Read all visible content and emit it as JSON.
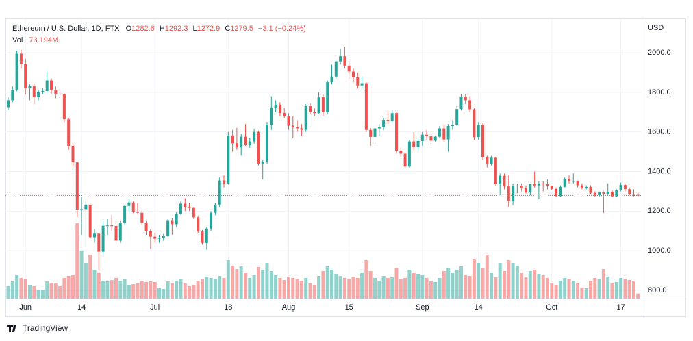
{
  "header": {
    "symbol": "Ethereum / U.S. Dollar, 1D, FTX",
    "open_label": "O",
    "high_label": "H",
    "low_label": "L",
    "close_label": "C",
    "change": "−3.1 (−0.24%)",
    "vol_label": "Vol",
    "vol_value": "73.194M",
    "brand": "TradingView"
  },
  "chart_data": {
    "type": "candlestick",
    "currency": "USD",
    "up_color": "#26a69a",
    "down_color": "#ef5350",
    "grid": true,
    "ylim": [
      758.5,
      2173
    ],
    "yticks": [
      {
        "value": 800,
        "label": "800.0"
      },
      {
        "value": 1000,
        "label": "1000.0"
      },
      {
        "value": 1200,
        "label": "1200.0"
      },
      {
        "value": 1400,
        "label": "1400.0"
      },
      {
        "value": 1600,
        "label": "1600.0"
      },
      {
        "value": 1800,
        "label": "1800.0"
      },
      {
        "value": 2000,
        "label": "2000.0"
      }
    ],
    "xticks": [
      {
        "value": 4,
        "label": "Jun"
      },
      {
        "value": 17,
        "label": "14"
      },
      {
        "value": 34,
        "label": "Jul"
      },
      {
        "value": 51,
        "label": "18"
      },
      {
        "value": 65,
        "label": "Aug"
      },
      {
        "value": 79,
        "label": "15"
      },
      {
        "value": 96,
        "label": "Sep"
      },
      {
        "value": 109,
        "label": "14"
      },
      {
        "value": 126,
        "label": "Oct"
      },
      {
        "value": 142,
        "label": "17"
      }
    ],
    "candles": [
      [
        1725,
        1775,
        1710,
        1760
      ],
      [
        1760,
        1830,
        1750,
        1812
      ],
      [
        1812,
        2010,
        1805,
        1995
      ],
      [
        1995,
        2015,
        1920,
        1942
      ],
      [
        1942,
        1970,
        1790,
        1822
      ],
      [
        1822,
        1840,
        1760,
        1832
      ],
      [
        1832,
        1845,
        1740,
        1776
      ],
      [
        1776,
        1810,
        1760,
        1802
      ],
      [
        1802,
        1820,
        1790,
        1806
      ],
      [
        1806,
        1905,
        1800,
        1860
      ],
      [
        1860,
        1870,
        1790,
        1812
      ],
      [
        1812,
        1830,
        1770,
        1793
      ],
      [
        1793,
        1810,
        1775,
        1790
      ],
      [
        1790,
        1795,
        1650,
        1664
      ],
      [
        1664,
        1670,
        1510,
        1530
      ],
      [
        1530,
        1540,
        1420,
        1446
      ],
      [
        1446,
        1450,
        1170,
        1208
      ],
      [
        1208,
        1270,
        1080,
        1210
      ],
      [
        1210,
        1250,
        1020,
        1233
      ],
      [
        1233,
        1240,
        1060,
        1068
      ],
      [
        1068,
        1110,
        1040,
        1086
      ],
      [
        1086,
        1090,
        900,
        995
      ],
      [
        995,
        1150,
        980,
        1126
      ],
      [
        1126,
        1160,
        1080,
        1128
      ],
      [
        1128,
        1180,
        1100,
        1125
      ],
      [
        1125,
        1140,
        1040,
        1051
      ],
      [
        1051,
        1150,
        1040,
        1142
      ],
      [
        1142,
        1230,
        1130,
        1226
      ],
      [
        1226,
        1260,
        1200,
        1244
      ],
      [
        1244,
        1250,
        1190,
        1198
      ],
      [
        1198,
        1240,
        1185,
        1192
      ],
      [
        1192,
        1210,
        1130,
        1141
      ],
      [
        1141,
        1150,
        1080,
        1098
      ],
      [
        1098,
        1110,
        1010,
        1071
      ],
      [
        1071,
        1090,
        1040,
        1061
      ],
      [
        1061,
        1080,
        1040,
        1066
      ],
      [
        1066,
        1085,
        1050,
        1074
      ],
      [
        1074,
        1160,
        1070,
        1151
      ],
      [
        1151,
        1165,
        1080,
        1134
      ],
      [
        1134,
        1195,
        1120,
        1187
      ],
      [
        1187,
        1250,
        1180,
        1238
      ],
      [
        1238,
        1265,
        1200,
        1221
      ],
      [
        1221,
        1240,
        1200,
        1216
      ],
      [
        1216,
        1220,
        1160,
        1169
      ],
      [
        1169,
        1175,
        1090,
        1097
      ],
      [
        1097,
        1105,
        1030,
        1039
      ],
      [
        1039,
        1120,
        1005,
        1112
      ],
      [
        1112,
        1200,
        1100,
        1192
      ],
      [
        1192,
        1240,
        1180,
        1233
      ],
      [
        1233,
        1370,
        1220,
        1355
      ],
      [
        1355,
        1380,
        1320,
        1339
      ],
      [
        1339,
        1600,
        1335,
        1582
      ],
      [
        1582,
        1610,
        1500,
        1543
      ],
      [
        1543,
        1620,
        1510,
        1522
      ],
      [
        1522,
        1590,
        1480,
        1576
      ],
      [
        1576,
        1640,
        1530,
        1533
      ],
      [
        1533,
        1570,
        1520,
        1552
      ],
      [
        1552,
        1615,
        1540,
        1600
      ],
      [
        1600,
        1605,
        1430,
        1440
      ],
      [
        1440,
        1460,
        1360,
        1450
      ],
      [
        1450,
        1650,
        1440,
        1637
      ],
      [
        1637,
        1780,
        1610,
        1724
      ],
      [
        1724,
        1760,
        1700,
        1738
      ],
      [
        1738,
        1750,
        1680,
        1696
      ],
      [
        1696,
        1720,
        1670,
        1680
      ],
      [
        1680,
        1695,
        1610,
        1632
      ],
      [
        1632,
        1680,
        1570,
        1624
      ],
      [
        1624,
        1660,
        1600,
        1618
      ],
      [
        1618,
        1640,
        1580,
        1611
      ],
      [
        1611,
        1740,
        1600,
        1730
      ],
      [
        1730,
        1745,
        1690,
        1700
      ],
      [
        1700,
        1720,
        1680,
        1695
      ],
      [
        1695,
        1800,
        1690,
        1775
      ],
      [
        1775,
        1790,
        1680,
        1700
      ],
      [
        1700,
        1860,
        1690,
        1851
      ],
      [
        1851,
        1940,
        1840,
        1880
      ],
      [
        1880,
        1960,
        1870,
        1956
      ],
      [
        1956,
        2020,
        1940,
        1982
      ],
      [
        1982,
        2030,
        1920,
        1935
      ],
      [
        1935,
        1960,
        1870,
        1905
      ],
      [
        1905,
        1920,
        1850,
        1876
      ],
      [
        1876,
        1900,
        1820,
        1835
      ],
      [
        1835,
        1880,
        1820,
        1846
      ],
      [
        1846,
        1850,
        1600,
        1610
      ],
      [
        1610,
        1620,
        1530,
        1575
      ],
      [
        1575,
        1630,
        1540,
        1618
      ],
      [
        1618,
        1640,
        1580,
        1625
      ],
      [
        1625,
        1670,
        1610,
        1661
      ],
      [
        1661,
        1700,
        1640,
        1656
      ],
      [
        1656,
        1710,
        1650,
        1695
      ],
      [
        1695,
        1700,
        1490,
        1505
      ],
      [
        1505,
        1520,
        1470,
        1490
      ],
      [
        1490,
        1500,
        1420,
        1425
      ],
      [
        1425,
        1560,
        1420,
        1552
      ],
      [
        1552,
        1600,
        1510,
        1524
      ],
      [
        1524,
        1570,
        1510,
        1554
      ],
      [
        1554,
        1600,
        1530,
        1586
      ],
      [
        1586,
        1610,
        1560,
        1578
      ],
      [
        1578,
        1590,
        1540,
        1556
      ],
      [
        1556,
        1580,
        1550,
        1576
      ],
      [
        1576,
        1630,
        1570,
        1618
      ],
      [
        1618,
        1640,
        1550,
        1562
      ],
      [
        1562,
        1640,
        1500,
        1630
      ],
      [
        1630,
        1660,
        1610,
        1636
      ],
      [
        1636,
        1730,
        1630,
        1716
      ],
      [
        1716,
        1790,
        1710,
        1779
      ],
      [
        1779,
        1790,
        1740,
        1760
      ],
      [
        1760,
        1780,
        1700,
        1715
      ],
      [
        1715,
        1720,
        1560,
        1574
      ],
      [
        1574,
        1650,
        1560,
        1636
      ],
      [
        1636,
        1645,
        1460,
        1472
      ],
      [
        1472,
        1480,
        1420,
        1436
      ],
      [
        1436,
        1480,
        1430,
        1470
      ],
      [
        1470,
        1475,
        1330,
        1336
      ],
      [
        1336,
        1390,
        1280,
        1379
      ],
      [
        1379,
        1390,
        1310,
        1325
      ],
      [
        1325,
        1380,
        1220,
        1252
      ],
      [
        1252,
        1340,
        1230,
        1328
      ],
      [
        1328,
        1340,
        1290,
        1329
      ],
      [
        1329,
        1340,
        1300,
        1316
      ],
      [
        1316,
        1330,
        1290,
        1295
      ],
      [
        1295,
        1340,
        1280,
        1336
      ],
      [
        1336,
        1400,
        1320,
        1330
      ],
      [
        1330,
        1350,
        1260,
        1339
      ],
      [
        1339,
        1350,
        1300,
        1336
      ],
      [
        1336,
        1360,
        1310,
        1328
      ],
      [
        1328,
        1330,
        1305,
        1312
      ],
      [
        1312,
        1320,
        1270,
        1276
      ],
      [
        1276,
        1330,
        1270,
        1323
      ],
      [
        1323,
        1370,
        1320,
        1362
      ],
      [
        1362,
        1380,
        1340,
        1352
      ],
      [
        1352,
        1390,
        1340,
        1352
      ],
      [
        1352,
        1355,
        1320,
        1331
      ],
      [
        1331,
        1340,
        1310,
        1316
      ],
      [
        1316,
        1330,
        1310,
        1322
      ],
      [
        1322,
        1330,
        1285,
        1292
      ],
      [
        1292,
        1300,
        1270,
        1281
      ],
      [
        1281,
        1300,
        1275,
        1295
      ],
      [
        1295,
        1300,
        1190,
        1288
      ],
      [
        1288,
        1340,
        1280,
        1298
      ],
      [
        1298,
        1305,
        1270,
        1275
      ],
      [
        1275,
        1310,
        1270,
        1306
      ],
      [
        1306,
        1345,
        1300,
        1332
      ],
      [
        1332,
        1340,
        1300,
        1311
      ],
      [
        1311,
        1320,
        1280,
        1288
      ],
      [
        1288,
        1310,
        1275,
        1282.6
      ],
      [
        1282.6,
        1292.3,
        1272.9,
        1279.5
      ]
    ],
    "volumes": [
      180,
      250,
      350,
      300,
      280,
      200,
      180,
      120,
      130,
      250,
      230,
      220,
      190,
      300,
      330,
      350,
      1100,
      700,
      520,
      640,
      420,
      380,
      260,
      250,
      270,
      300,
      260,
      280,
      200,
      210,
      220,
      260,
      240,
      250,
      240,
      150,
      140,
      250,
      230,
      260,
      280,
      220,
      180,
      200,
      260,
      280,
      320,
      300,
      280,
      330,
      300,
      560,
      480,
      430,
      470,
      380,
      300,
      350,
      460,
      420,
      520,
      400,
      340,
      300,
      270,
      320,
      300,
      290,
      260,
      300,
      220,
      200,
      330,
      400,
      470,
      420,
      360,
      330,
      300,
      280,
      320,
      300,
      380,
      560,
      400,
      300,
      260,
      330,
      300,
      310,
      450,
      280,
      300,
      420,
      380,
      360,
      340,
      300,
      250,
      240,
      300,
      400,
      440,
      380,
      420,
      470,
      350,
      330,
      580,
      520,
      440,
      640,
      380,
      310,
      520,
      400,
      560,
      520,
      480,
      380,
      310,
      400,
      420,
      360,
      340,
      300,
      230,
      200,
      260,
      300,
      280,
      260,
      220,
      160,
      150,
      260,
      300,
      280,
      430,
      320,
      220,
      240,
      300,
      290,
      270,
      260,
      73.194
    ]
  }
}
